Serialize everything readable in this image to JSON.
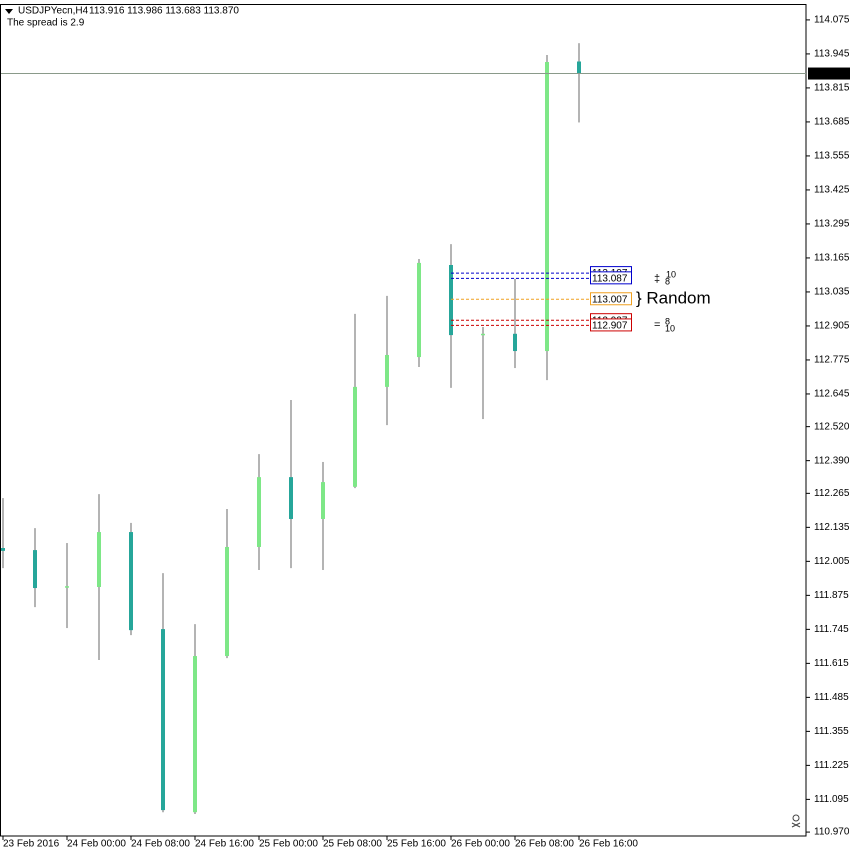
{
  "chart_data": {
    "type": "candlestick",
    "title": "USDJPYecn,H4",
    "subtitle": "113.916 113.986 113.683 113.870",
    "note": "The spread is 2.9",
    "categories": [
      "23 Feb 2016",
      null,
      "24 Feb 00:00",
      null,
      "24 Feb 08:00",
      null,
      "24 Feb 16:00",
      null,
      "25 Feb 00:00",
      null,
      "25 Feb 08:00",
      null,
      "25 Feb 16:00",
      null,
      "26 Feb 00:00",
      null,
      "26 Feb 08:00",
      null,
      "26 Feb 16:00"
    ],
    "open": [
      112.056,
      112.048,
      111.905,
      111.907,
      112.117,
      111.746,
      111.046,
      111.643,
      112.06,
      112.327,
      112.167,
      112.29,
      112.672,
      112.786,
      113.138,
      112.87,
      112.875,
      112.809,
      113.916
    ],
    "high": [
      112.247,
      112.132,
      112.075,
      112.262,
      112.152,
      111.96,
      111.765,
      112.205,
      112.415,
      112.622,
      112.385,
      112.951,
      113.02,
      113.161,
      113.218,
      112.901,
      113.085,
      113.941,
      113.986
    ],
    "low": [
      111.979,
      111.83,
      111.75,
      111.628,
      111.723,
      111.046,
      111.039,
      111.635,
      111.972,
      111.979,
      111.972,
      112.285,
      112.526,
      112.748,
      112.668,
      112.549,
      112.744,
      112.698,
      113.683
    ],
    "close": [
      112.045,
      111.903,
      111.91,
      112.117,
      111.742,
      111.054,
      111.643,
      112.06,
      112.327,
      112.167,
      112.308,
      112.672,
      112.794,
      113.146,
      112.87,
      112.875,
      112.809,
      113.914,
      113.87
    ],
    "up_color": "#7ee787",
    "down_color": "#26a69a",
    "wick_color": "#b4b4b4",
    "ylim": [
      110.955,
      114.132
    ],
    "yticks": [
      114.075,
      113.945,
      113.815,
      113.685,
      113.555,
      113.425,
      113.295,
      113.165,
      113.035,
      112.905,
      112.775,
      112.645,
      {
        "value": 112.52,
        "label": "112.520"
      },
      {
        "value": 112.39,
        "label": "112.390"
      },
      112.265,
      112.135,
      112.005,
      111.875,
      111.745,
      111.615,
      111.485,
      111.355,
      111.225,
      111.095,
      {
        "value": 110.97,
        "label": "110.970"
      }
    ],
    "price_line": {
      "value": 113.87,
      "label": "113.870"
    },
    "levels": {
      "values": [
        113.107,
        113.087,
        113.007,
        112.927,
        112.907
      ],
      "colors": [
        "#0000cc",
        "#0000cc",
        "#f0a020",
        "#cc0000",
        "#cc0000"
      ]
    },
    "annotations": [
      {
        "text": "‡",
        "color": "#00008b"
      },
      {
        "text": "10",
        "color": "#00008b"
      },
      {
        "text": "8",
        "color": "#00008b"
      },
      {
        "text": "} Random",
        "color": "#00008b"
      },
      {
        "text": "=",
        "color": "#cc0000"
      },
      {
        "text": "8",
        "color": "#cc0000"
      },
      {
        "text": "10",
        "color": "#cc0000"
      }
    ]
  }
}
